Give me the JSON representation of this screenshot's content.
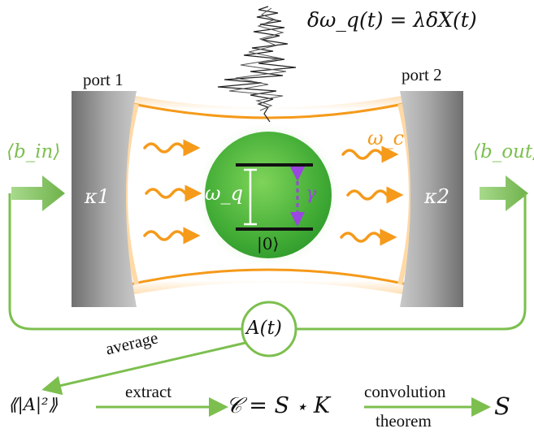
{
  "title_equation": "δω_q(t) = λδX(t)",
  "labels": {
    "port1": "port 1",
    "port2": "port 2",
    "b_in": "⟨b_in⟩",
    "b_out": "⟨b_out⟩",
    "kappa1": "κ1",
    "kappa2": "κ2",
    "omega_c": "ω_c",
    "omega_q": "ω_q",
    "gamma": "γ",
    "ground_state": "|0⟩",
    "A_t": "A(t)",
    "average": "average",
    "expectation": "⟪|A|²⟫",
    "extract": "extract",
    "convolution_eq": "𝒞 = S ⋆ K",
    "convolution": "convolution",
    "theorem": "theorem",
    "S": "S"
  },
  "colors": {
    "green": "#7cbf4e",
    "orange": "#f59a1a",
    "purple": "#9a46e0",
    "mirror_gray": "#8c8c8c",
    "qubit_green": "#4fb53a"
  }
}
